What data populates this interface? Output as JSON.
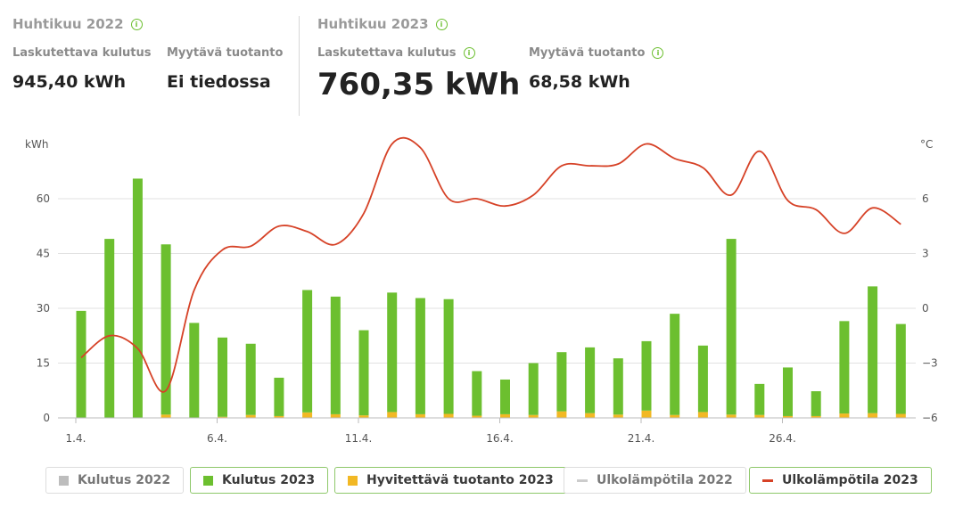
{
  "header": {
    "period_2022": {
      "title": "Huhtikuu 2022",
      "billable_label": "Laskutettava kulutus",
      "billable_value": "945,40 kWh",
      "sold_label": "Myytävä tuotanto",
      "sold_value": "Ei tiedossa"
    },
    "period_2023": {
      "title": "Huhtikuu 2023",
      "billable_label": "Laskutettava kulutus",
      "billable_value": "760,35 kWh",
      "sold_label": "Myytävä tuotanto",
      "sold_value": "68,58 kWh"
    },
    "info_icon_glyph": "i"
  },
  "legend": [
    {
      "label": "Kulutus 2022",
      "color": "#bdbdbd",
      "kind": "box",
      "active": false
    },
    {
      "label": "Kulutus 2023",
      "color": "#6cbf2f",
      "kind": "box",
      "active": true
    },
    {
      "label": "Hyvitettävä tuotanto 2023",
      "color": "#f2b824",
      "kind": "box",
      "active": true
    },
    {
      "label": "Ulkolämpötila 2022",
      "color": "#cccccc",
      "kind": "line",
      "active": false
    },
    {
      "label": "Ulkolämpötila 2023",
      "color": "#d64227",
      "kind": "line",
      "active": true
    }
  ],
  "chart_data": {
    "type": "bar",
    "y_left_label": "kWh",
    "y_right_label": "°C",
    "ylim_left": [
      0,
      60
    ],
    "ylim_right": [
      -6,
      6
    ],
    "yticks_left": [
      0,
      15,
      30,
      45,
      60
    ],
    "yticks_right": [
      -6,
      -3,
      0,
      3,
      6
    ],
    "x_tick_labels": [
      "1.4.",
      "6.4.",
      "11.4.",
      "16.4.",
      "21.4.",
      "26.4."
    ],
    "x_tick_days": [
      1,
      6,
      11,
      16,
      21,
      26
    ],
    "days": [
      1,
      2,
      3,
      4,
      5,
      6,
      7,
      8,
      9,
      10,
      11,
      12,
      13,
      14,
      15,
      16,
      17,
      18,
      19,
      20,
      21,
      22,
      23,
      24,
      25,
      26,
      27,
      28,
      29,
      30
    ],
    "series": [
      {
        "name": "Kulutus 2023",
        "color": "#6cbf2f",
        "values": [
          29.3,
          49.0,
          65.5,
          47.5,
          26.0,
          22.0,
          20.3,
          11.0,
          35.0,
          33.2,
          24.0,
          34.3,
          32.8,
          32.5,
          12.8,
          10.5,
          15.0,
          18.0,
          19.3,
          16.3,
          21.0,
          28.5,
          19.8,
          49.0,
          9.3,
          13.8,
          7.3,
          26.5,
          36.0,
          25.7
        ]
      },
      {
        "name": "Hyvitettävä tuotanto 2023",
        "color": "#f2b824",
        "values": [
          0,
          0,
          0,
          0.9,
          0,
          0.3,
          0.8,
          0.5,
          1.5,
          1.0,
          0.7,
          1.6,
          1.0,
          1.1,
          0.6,
          1.0,
          0.8,
          1.8,
          1.3,
          0.9,
          2.0,
          0.8,
          1.6,
          0.9,
          0.8,
          0.5,
          0.5,
          1.2,
          1.3,
          1.1
        ]
      },
      {
        "name": "Ulkolämpötila 2023",
        "color": "#d64227",
        "type": "line",
        "values": [
          -2.7,
          -1.5,
          -2.2,
          -4.5,
          1.0,
          3.2,
          3.4,
          4.5,
          4.2,
          3.5,
          5.2,
          9.0,
          8.8,
          6.0,
          6.0,
          5.6,
          6.2,
          7.8,
          7.8,
          7.9,
          9.0,
          8.2,
          7.7,
          6.2,
          8.6,
          5.9,
          5.4,
          4.1,
          5.5,
          4.6
        ]
      }
    ]
  }
}
